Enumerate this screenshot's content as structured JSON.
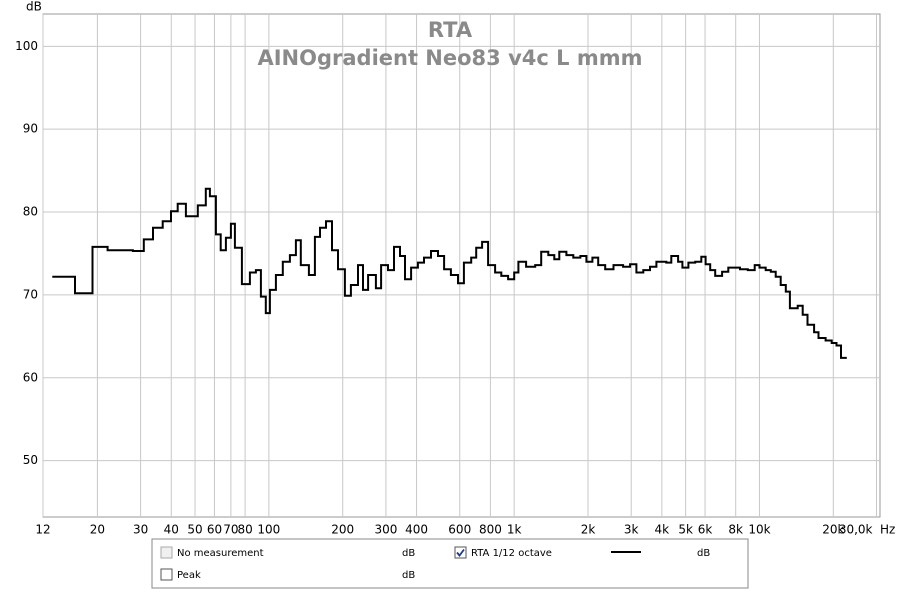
{
  "chart_data": {
    "type": "step",
    "title": "RTA",
    "subtitle": "AINOgradient Neo83 v4c L mmm",
    "y_label": "dB",
    "x_unit": "Hz",
    "x_log": true,
    "grid": true,
    "xlim": [
      12,
      31000
    ],
    "ylim": [
      43.2,
      103.9
    ],
    "xticks": [
      12,
      20,
      30,
      40,
      50,
      60,
      70,
      80,
      100,
      200,
      300,
      400,
      600,
      800,
      {
        "value": 1000,
        "label": "1k"
      },
      {
        "value": 2000,
        "label": "2k"
      },
      {
        "value": 3000,
        "label": "3k"
      },
      {
        "value": 4000,
        "label": "4k"
      },
      {
        "value": 5000,
        "label": "5k"
      },
      {
        "value": 6000,
        "label": "6k"
      },
      {
        "value": 8000,
        "label": "8k"
      },
      {
        "value": 10000,
        "label": "10k"
      },
      {
        "value": 20000,
        "label": "20k"
      },
      {
        "value": 30000,
        "label": "30,0k"
      }
    ],
    "yticks": [
      50,
      60,
      70,
      80,
      90,
      100
    ],
    "series": [
      {
        "name": "RTA 1/12 octave",
        "unit": "dB",
        "color": "#000000",
        "x": [
          13.1,
          16.2,
          19.1,
          22,
          27.9,
          30.9,
          33.7,
          36.9,
          39.9,
          42.5,
          45.9,
          51.3,
          55.3,
          57.5,
          60.8,
          63.6,
          66.8,
          70,
          72.7,
          77.6,
          83.7,
          88.5,
          92.8,
          97.2,
          101,
          106.8,
          114,
          121.8,
          128.9,
          135,
          145.6,
          154,
          161.6,
          170.9,
          180.8,
          191.3,
          204.2,
          216,
          230.8,
          242,
          253.8,
          273,
          286.7,
          306,
          323.7,
          342.5,
          359,
          380,
          405,
          429,
          458,
          489,
          518,
          552,
          590,
          624,
          668,
          700,
          740,
          783,
          836,
          886,
          945,
          1000,
          1040,
          1118,
          1218,
          1289,
          1377,
          1458,
          1528,
          1632,
          1742,
          1862,
          1970,
          2085,
          2200,
          2350,
          2540,
          2780,
          2970,
          3150,
          3360,
          3580,
          3800,
          4170,
          4370,
          4660,
          4850,
          5130,
          5470,
          5790,
          6030,
          6300,
          6600,
          7040,
          7460,
          8330,
          8960,
          9560,
          10000,
          10600,
          11120,
          11650,
          12200,
          12800,
          13300,
          14320,
          15000,
          15700,
          16700,
          17400,
          18600,
          19700,
          20600,
          21500,
          22700
        ],
        "values": [
          72.2,
          70.2,
          75.8,
          75.4,
          75.3,
          76.7,
          78.1,
          78.9,
          80.1,
          81,
          79.5,
          80.8,
          82.8,
          81.9,
          77.3,
          75.4,
          76.9,
          78.6,
          75.7,
          71.3,
          72.7,
          73,
          69.8,
          67.8,
          70.6,
          72.4,
          74,
          74.8,
          76.6,
          73.6,
          72.4,
          77,
          78.1,
          78.9,
          75.4,
          73.1,
          69.9,
          71.2,
          73.6,
          70.6,
          72.4,
          70.8,
          73.6,
          73,
          75.8,
          74.7,
          71.9,
          73.3,
          73.9,
          74.5,
          75.3,
          74.7,
          73.1,
          72.4,
          71.4,
          73.9,
          74.5,
          75.7,
          76.4,
          73.6,
          72.7,
          72.3,
          71.9,
          72.7,
          74,
          73.4,
          73.6,
          75.2,
          74.8,
          74.3,
          75.2,
          74.8,
          74.5,
          74.7,
          74,
          74.5,
          73.6,
          73.1,
          73.6,
          73.4,
          73.7,
          72.7,
          73,
          73.4,
          74,
          73.9,
          74.7,
          74,
          73.3,
          73.9,
          74,
          74.6,
          73.7,
          73,
          72.3,
          72.8,
          73.3,
          73.1,
          73,
          73.6,
          73.3,
          73,
          72.8,
          72.2,
          71.2,
          70.4,
          68.4,
          68.7,
          67.6,
          66.4,
          65.5,
          64.8,
          64.5,
          64.2,
          63.9,
          62.4,
          62.4
        ]
      }
    ],
    "legend_extra": [
      {
        "name": "No measurement",
        "unit": "dB",
        "color": "#999999",
        "checked": false,
        "enabled": false
      },
      {
        "name": "Peak",
        "unit": "dB",
        "color": "#a00000",
        "checked": false,
        "enabled": true
      }
    ]
  }
}
